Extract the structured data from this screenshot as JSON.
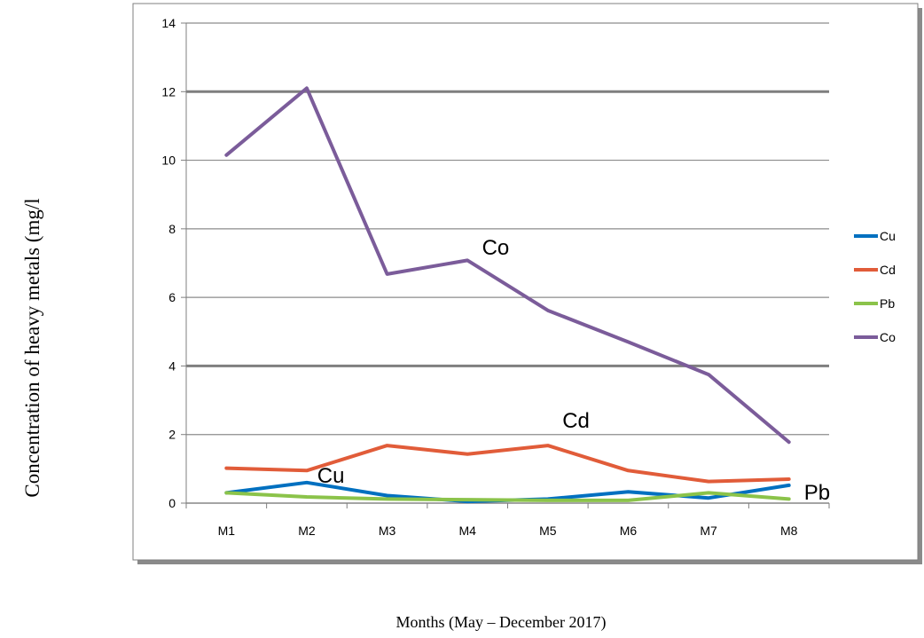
{
  "chart_data": {
    "type": "line",
    "ylabel": "Concentration of heavy metals (mg/l",
    "xlabel": "Months (May – December 2017)",
    "categories": [
      "M1",
      "M2",
      "M3",
      "M4",
      "M5",
      "M6",
      "M7",
      "M8"
    ],
    "ylim": [
      0,
      14
    ],
    "yticks": [
      0,
      2,
      4,
      6,
      8,
      10,
      12,
      14
    ],
    "grid": true,
    "legend_position": "right",
    "series": [
      {
        "name": "Cu",
        "color": "#0070C0",
        "values": [
          0.3,
          0.6,
          0.22,
          0.05,
          0.12,
          0.33,
          0.15,
          0.52
        ]
      },
      {
        "name": "Cd",
        "color": "#E15C39",
        "values": [
          1.02,
          0.95,
          1.68,
          1.43,
          1.68,
          0.95,
          0.63,
          0.7
        ]
      },
      {
        "name": "Pb",
        "color": "#8BC34A",
        "values": [
          0.3,
          0.18,
          0.12,
          0.1,
          0.08,
          0.08,
          0.3,
          0.12
        ]
      },
      {
        "name": "Co",
        "color": "#7B5C9A",
        "values": [
          10.15,
          12.1,
          6.68,
          7.08,
          5.62,
          4.7,
          3.75,
          1.78
        ]
      }
    ],
    "annotations": [
      {
        "text": "Co",
        "x": 4.35,
        "y": 7.25
      },
      {
        "text": "Cd",
        "x": 5.35,
        "y": 2.2
      },
      {
        "text": "Cu",
        "x": 2.3,
        "y": 0.6
      },
      {
        "text": "Pb",
        "x": 8.35,
        "y": 0.1
      }
    ]
  }
}
